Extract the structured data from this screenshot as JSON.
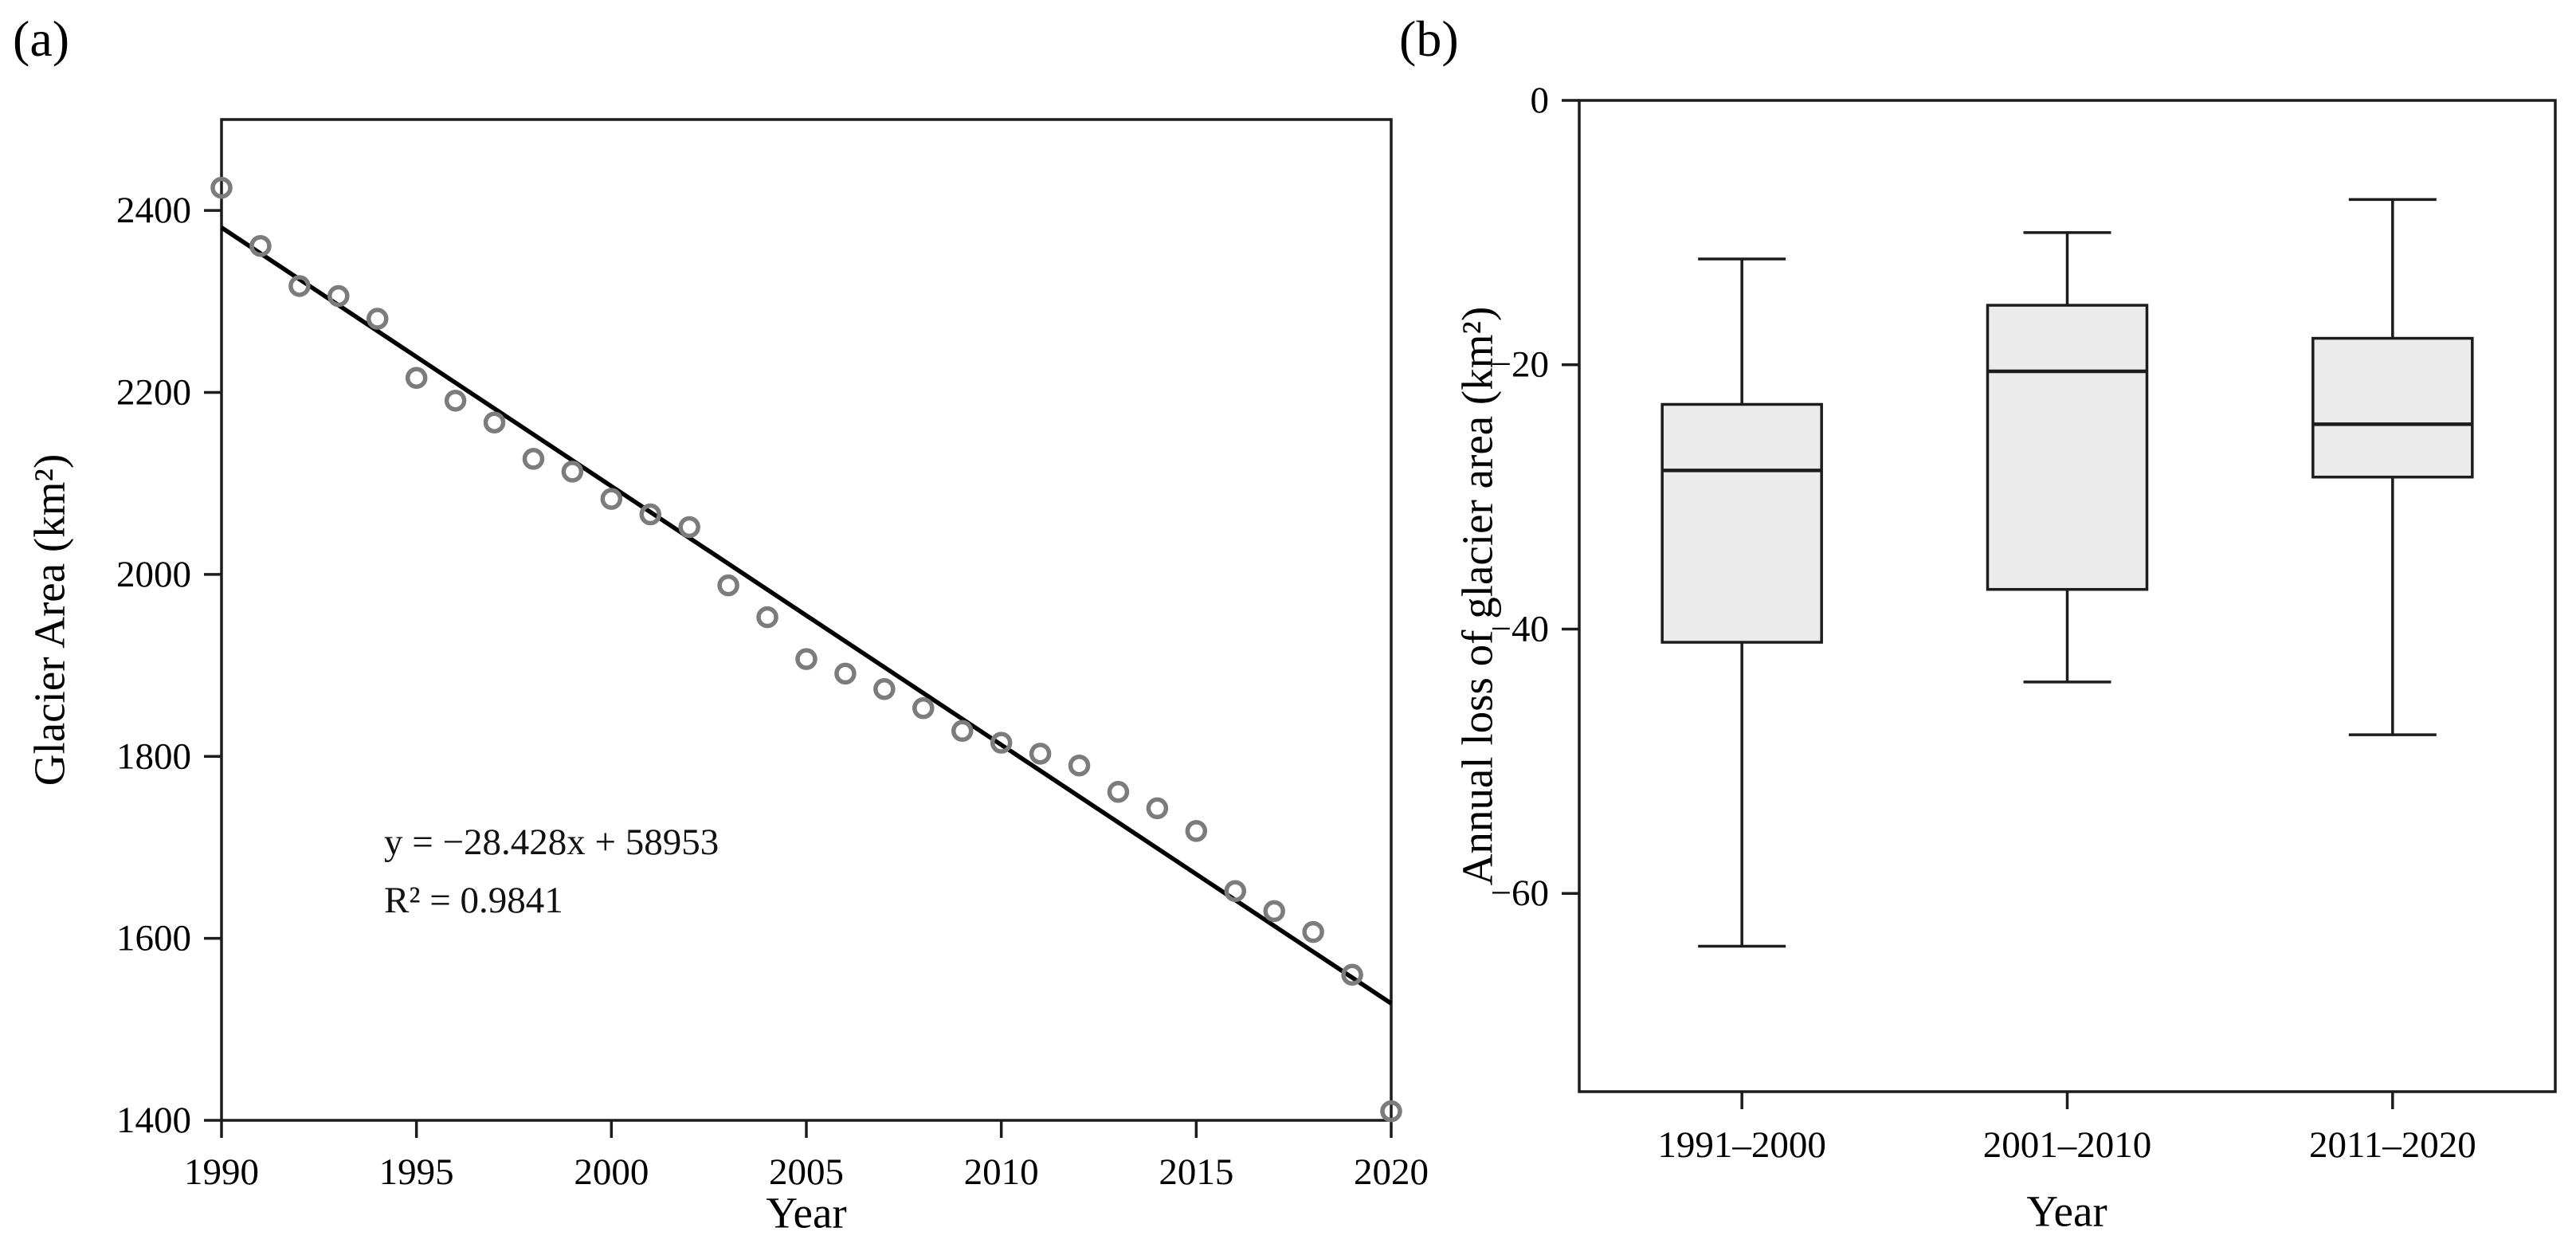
{
  "figure": {
    "panel_a_label": "(a)",
    "panel_b_label": "(b)"
  },
  "chart_data": [
    {
      "type": "scatter",
      "panel": "a",
      "xlabel": "Year",
      "ylabel": "Glacier Area (km²)",
      "xlim": [
        1990,
        2020
      ],
      "ylim": [
        1400,
        2500
      ],
      "grid": false,
      "legend": null,
      "x_ticks": [
        1990,
        1995,
        2000,
        2005,
        2010,
        2015,
        2020
      ],
      "x_tick_labels": [
        "1990",
        "1995",
        "2000",
        "2005",
        "2010",
        "2015",
        "2020"
      ],
      "y_ticks": [
        2400,
        2200,
        2000,
        1800,
        1600,
        1400
      ],
      "y_tick_labels": [
        "2400",
        "2200",
        "2000",
        "1800",
        "1600",
        "1400"
      ],
      "x": [
        1990,
        1991,
        1992,
        1993,
        1994,
        1995,
        1996,
        1997,
        1998,
        1999,
        2000,
        2001,
        2002,
        2003,
        2004,
        2005,
        2006,
        2007,
        2008,
        2009,
        2010,
        2011,
        2012,
        2013,
        2014,
        2015,
        2016,
        2017,
        2018,
        2019,
        2020
      ],
      "y": [
        2425,
        2361,
        2317,
        2306,
        2281,
        2216,
        2191,
        2167,
        2127,
        2113,
        2083,
        2066,
        2052,
        1988,
        1953,
        1907,
        1891,
        1874,
        1853,
        1828,
        1815,
        1803,
        1790,
        1761,
        1743,
        1718,
        1652,
        1630,
        1607,
        1560,
        1410
      ],
      "marker": {
        "shape": "open-circle",
        "color": "#7c7c7c"
      },
      "trendline": {
        "slope": -28.428,
        "intercept": 58953,
        "equation": "y = −28.428x + 58953",
        "r_squared": "R² = 0.9841",
        "color": "#000000"
      }
    },
    {
      "type": "box",
      "panel": "b",
      "xlabel": "Year",
      "ylabel": "Annual loss of glacier area (km²)",
      "ylim": [
        -75,
        0
      ],
      "grid": false,
      "y_ticks": [
        0,
        -20,
        -40,
        -60
      ],
      "y_tick_labels": [
        "0",
        "−20",
        "−40",
        "−60"
      ],
      "categories": [
        "1991–2000",
        "2001–2010",
        "2011–2020"
      ],
      "series": [
        {
          "category": "1991–2000",
          "min": -64,
          "q1": -41,
          "median": -28,
          "q3": -23,
          "max": -12
        },
        {
          "category": "2001–2010",
          "min": -44,
          "q1": -37,
          "median": -20.5,
          "q3": -15.5,
          "max": -10
        },
        {
          "category": "2011–2020",
          "min": -48,
          "q1": -28.5,
          "median": -24.5,
          "q3": -18,
          "max": -7.5
        }
      ],
      "box_fill": "#ebebeb",
      "line_color": "#1c1c1c"
    }
  ]
}
